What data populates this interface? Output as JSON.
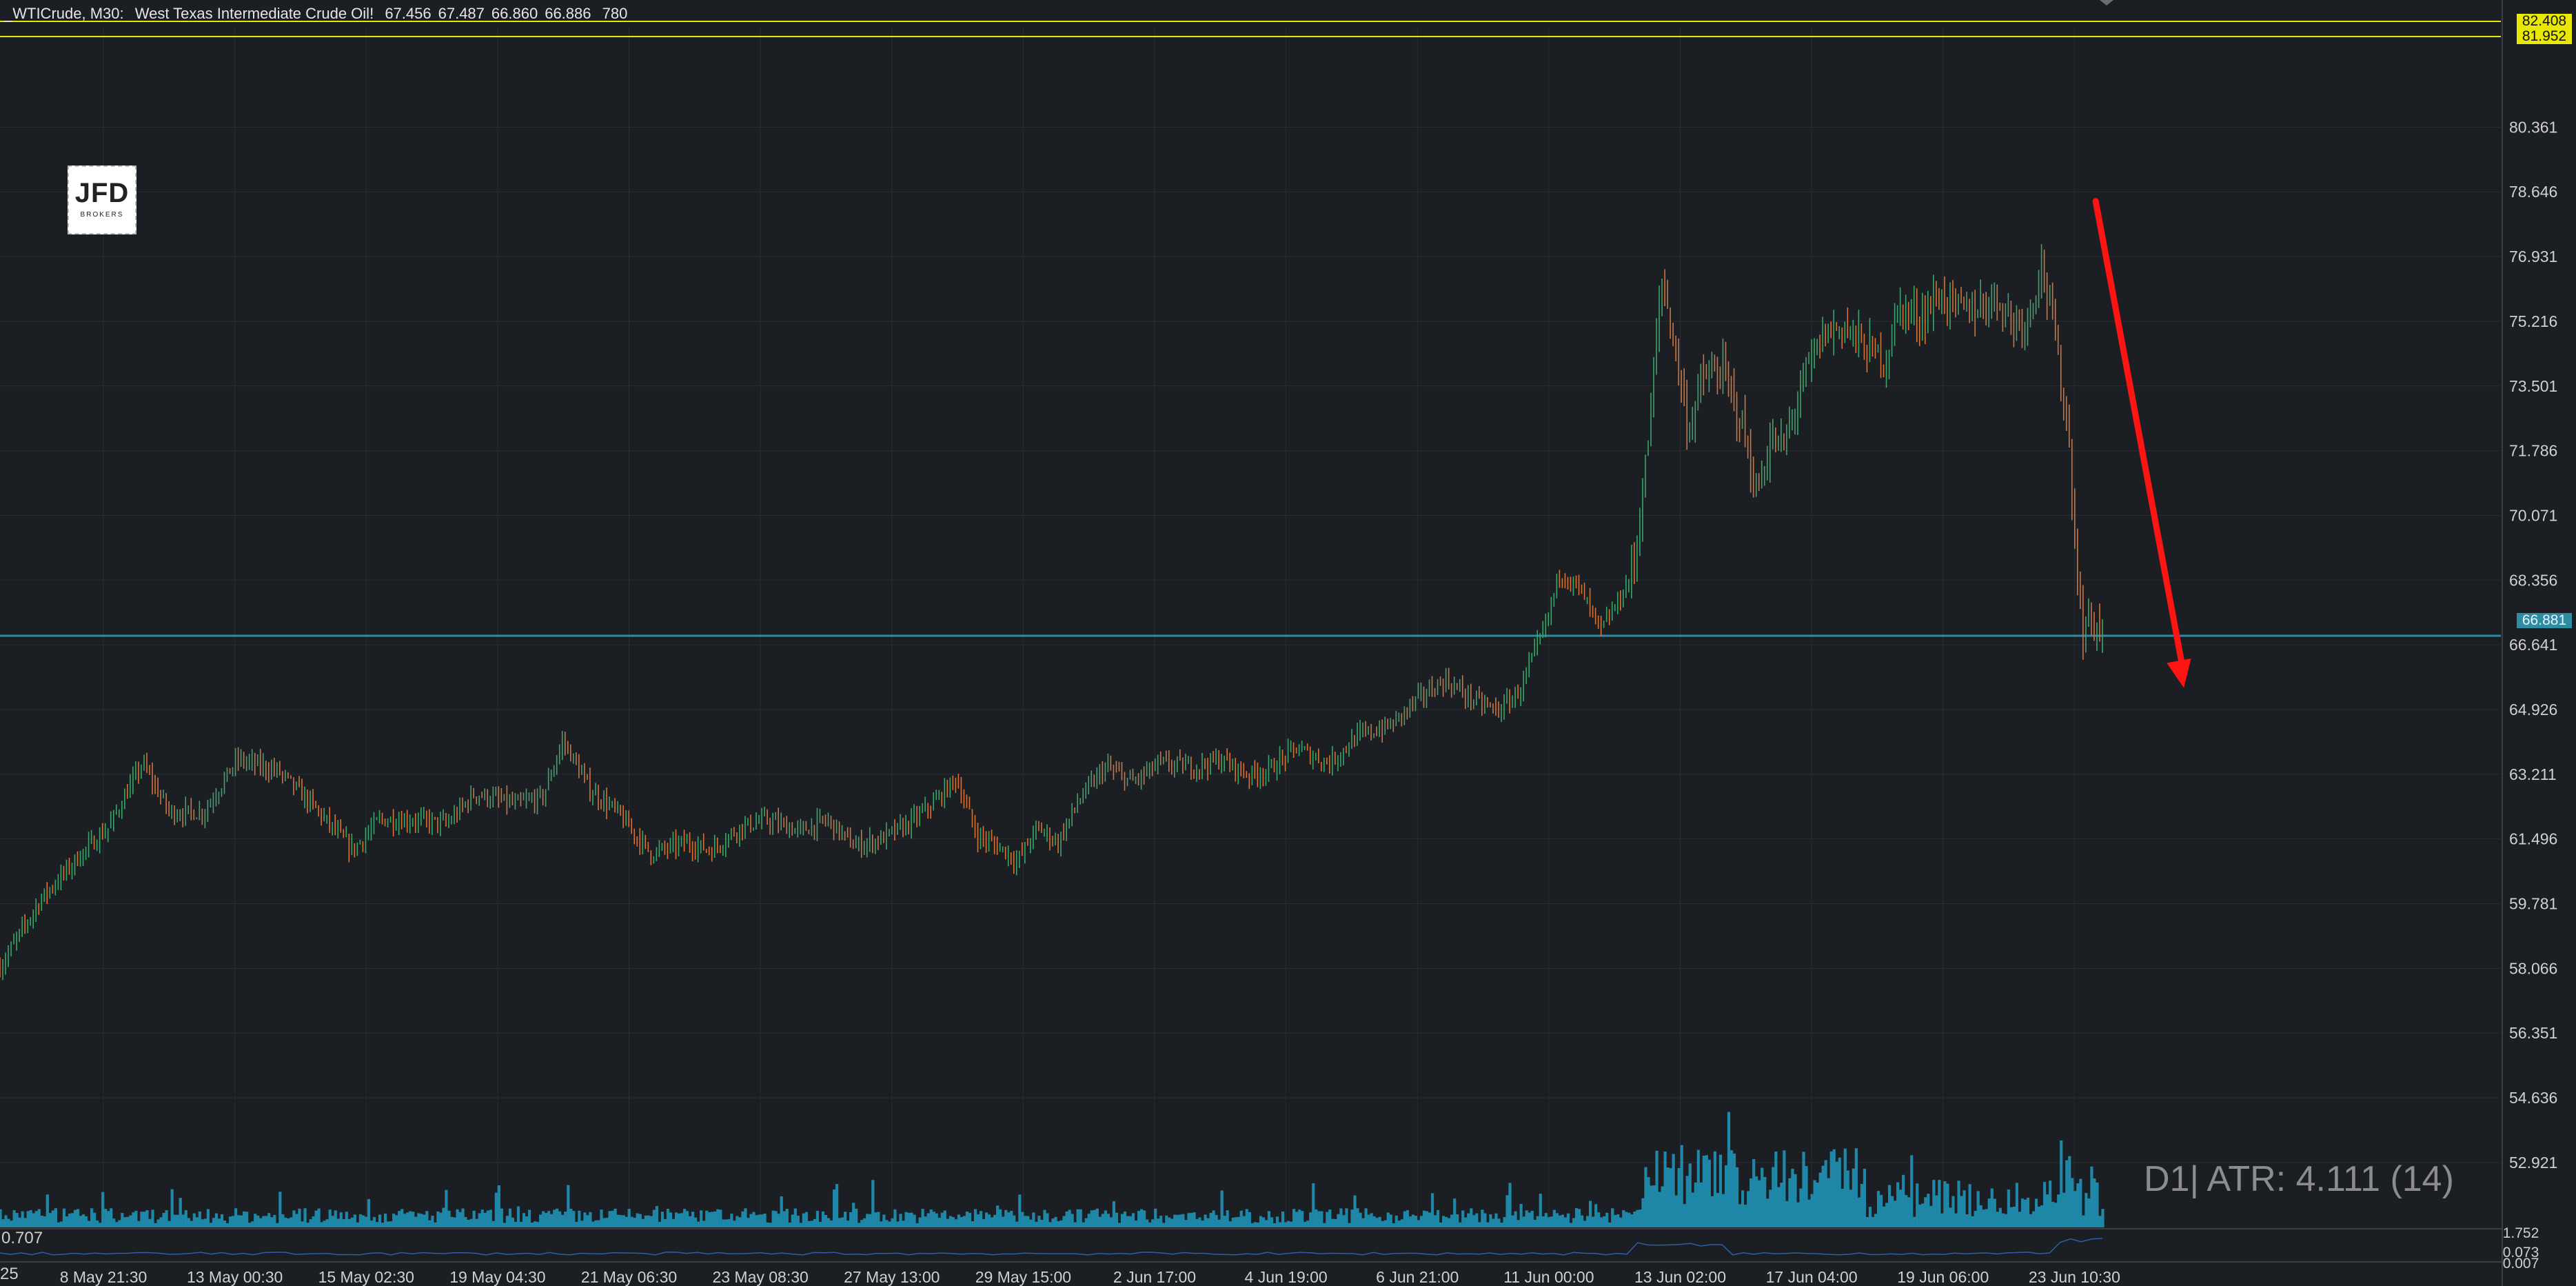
{
  "header": {
    "symbol": "_WTICrude, M30:",
    "name": "West Texas Intermediate Crude Oil!",
    "open": "67.456",
    "high": "67.487",
    "low": "66.860",
    "close": "66.886",
    "volume": "780"
  },
  "logo": {
    "brand": "JFD",
    "sub": "BROKERS"
  },
  "price_tags": {
    "upper1": "82.408",
    "upper2": "81.952",
    "current": "66.881"
  },
  "atr_label": "D1| ATR: 4.111 (14)",
  "oscillator": {
    "left_value": "0.707",
    "right_top": "1.752",
    "right_mid": "0.073",
    "right_bottom": "0.007"
  },
  "left_cut_label": "25",
  "colors": {
    "background": "#1b1e22",
    "bull": "#3fa36b",
    "bear": "#d4733a",
    "volume": "#1f87a8",
    "current_line": "#2e8ca3",
    "level_line": "#e8e800",
    "arrow": "#ff1414",
    "grid": "#2a2e33"
  },
  "chart_data": {
    "type": "candlestick",
    "y_ticks": [
      "80.361",
      "78.646",
      "76.931",
      "75.216",
      "73.501",
      "71.786",
      "70.071",
      "68.356",
      "66.641",
      "64.926",
      "63.211",
      "61.496",
      "59.781",
      "58.066",
      "56.351",
      "54.636",
      "52.921"
    ],
    "y_range": [
      51.2,
      83.0
    ],
    "x_ticks": [
      "8 May 21:30",
      "13 May 00:30",
      "15 May 02:30",
      "19 May 04:30",
      "21 May 06:30",
      "23 May 08:30",
      "27 May 13:00",
      "29 May 15:00",
      "2 Jun 17:00",
      "4 Jun 19:00",
      "6 Jun 21:00",
      "11 Jun 00:00",
      "13 Jun 02:00",
      "17 Jun 04:00",
      "19 Jun 06:00",
      "23 Jun 10:30"
    ],
    "levels": [
      82.408,
      81.952
    ],
    "current_price": 66.881,
    "trend": [
      {
        "t": 0,
        "p": 58.1
      },
      {
        "t": 0.6,
        "p": 59.9
      },
      {
        "t": 1.2,
        "p": 61.1
      },
      {
        "t": 1.6,
        "p": 61.8
      },
      {
        "t": 2.1,
        "p": 63.5
      },
      {
        "t": 2.5,
        "p": 62.2
      },
      {
        "t": 3.0,
        "p": 62.2
      },
      {
        "t": 3.5,
        "p": 63.6
      },
      {
        "t": 4.1,
        "p": 63.3
      },
      {
        "t": 4.6,
        "p": 62.4
      },
      {
        "t": 5.2,
        "p": 61.2
      },
      {
        "t": 5.6,
        "p": 62.0
      },
      {
        "t": 6.1,
        "p": 62.0
      },
      {
        "t": 6.6,
        "p": 61.9
      },
      {
        "t": 7.0,
        "p": 62.7
      },
      {
        "t": 7.6,
        "p": 62.4
      },
      {
        "t": 8.0,
        "p": 62.6
      },
      {
        "t": 8.3,
        "p": 64.1
      },
      {
        "t": 8.7,
        "p": 62.8
      },
      {
        "t": 9.1,
        "p": 62.2
      },
      {
        "t": 9.6,
        "p": 61.1
      },
      {
        "t": 10.1,
        "p": 61.4
      },
      {
        "t": 10.5,
        "p": 61.2
      },
      {
        "t": 10.9,
        "p": 61.8
      },
      {
        "t": 11.3,
        "p": 62.0
      },
      {
        "t": 11.8,
        "p": 61.7
      },
      {
        "t": 12.2,
        "p": 62.0
      },
      {
        "t": 12.6,
        "p": 61.3
      },
      {
        "t": 13.0,
        "p": 61.5
      },
      {
        "t": 13.4,
        "p": 61.9
      },
      {
        "t": 13.8,
        "p": 62.5
      },
      {
        "t": 14.1,
        "p": 63.1
      },
      {
        "t": 14.4,
        "p": 61.6
      },
      {
        "t": 14.8,
        "p": 61.2
      },
      {
        "t": 15.0,
        "p": 60.9
      },
      {
        "t": 15.3,
        "p": 61.8
      },
      {
        "t": 15.6,
        "p": 61.4
      },
      {
        "t": 15.9,
        "p": 62.5
      },
      {
        "t": 16.3,
        "p": 63.4
      },
      {
        "t": 16.7,
        "p": 63.0
      },
      {
        "t": 17.1,
        "p": 63.5
      },
      {
        "t": 17.6,
        "p": 63.4
      },
      {
        "t": 18.0,
        "p": 63.6
      },
      {
        "t": 18.4,
        "p": 63.2
      },
      {
        "t": 18.7,
        "p": 63.3
      },
      {
        "t": 19.1,
        "p": 63.9
      },
      {
        "t": 19.6,
        "p": 63.5
      },
      {
        "t": 20.0,
        "p": 64.2
      },
      {
        "t": 20.5,
        "p": 64.5
      },
      {
        "t": 20.9,
        "p": 65.2
      },
      {
        "t": 21.3,
        "p": 65.7
      },
      {
        "t": 21.8,
        "p": 65.1
      },
      {
        "t": 22.1,
        "p": 64.9
      },
      {
        "t": 22.4,
        "p": 65.4
      },
      {
        "t": 22.8,
        "p": 67.2
      },
      {
        "t": 23.0,
        "p": 68.6
      },
      {
        "t": 23.3,
        "p": 68.1
      },
      {
        "t": 23.6,
        "p": 67.0
      },
      {
        "t": 23.9,
        "p": 67.9
      },
      {
        "t": 24.1,
        "p": 68.8
      },
      {
        "t": 24.3,
        "p": 72.0
      },
      {
        "t": 24.5,
        "p": 76.4
      },
      {
        "t": 24.7,
        "p": 74.5
      },
      {
        "t": 24.9,
        "p": 72.3
      },
      {
        "t": 25.1,
        "p": 73.7
      },
      {
        "t": 25.4,
        "p": 73.9
      },
      {
        "t": 25.7,
        "p": 72.4
      },
      {
        "t": 25.9,
        "p": 70.6
      },
      {
        "t": 26.1,
        "p": 72.0
      },
      {
        "t": 26.3,
        "p": 71.9
      },
      {
        "t": 26.6,
        "p": 73.7
      },
      {
        "t": 26.9,
        "p": 74.9
      },
      {
        "t": 27.2,
        "p": 75.1
      },
      {
        "t": 27.5,
        "p": 74.5
      },
      {
        "t": 27.8,
        "p": 74.2
      },
      {
        "t": 28.0,
        "p": 75.6
      },
      {
        "t": 28.3,
        "p": 75.3
      },
      {
        "t": 28.6,
        "p": 75.9
      },
      {
        "t": 28.9,
        "p": 75.5
      },
      {
        "t": 29.2,
        "p": 75.6
      },
      {
        "t": 29.4,
        "p": 75.9
      },
      {
        "t": 29.7,
        "p": 75.2
      },
      {
        "t": 29.9,
        "p": 75.3
      },
      {
        "t": 30.1,
        "p": 76.8
      },
      {
        "t": 30.3,
        "p": 74.8
      },
      {
        "t": 30.5,
        "p": 72.2
      },
      {
        "t": 30.6,
        "p": 69.2
      },
      {
        "t": 30.7,
        "p": 66.9
      },
      {
        "t": 30.8,
        "p": 67.4
      },
      {
        "t": 31.0,
        "p": 66.9
      }
    ],
    "arrow": {
      "from": {
        "t": 30.9,
        "p": 78.4
      },
      "to": {
        "t": 32.2,
        "p": 65.5
      }
    },
    "atr": {
      "timeframe": "D1",
      "value": 4.111,
      "period": 14
    }
  }
}
